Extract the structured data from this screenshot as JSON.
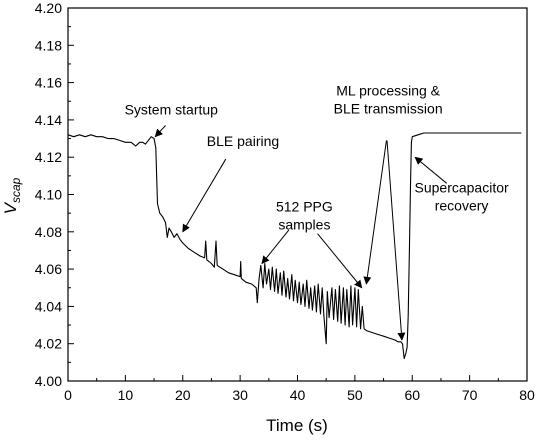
{
  "chart_data": {
    "type": "line",
    "title": "",
    "xlabel": "Time (s)",
    "ylabel_main": "V",
    "ylabel_sub": "scap",
    "xlim": [
      0,
      80
    ],
    "ylim": [
      4.0,
      4.2
    ],
    "xticks": [
      0,
      10,
      20,
      30,
      40,
      50,
      60,
      70,
      80
    ],
    "yticks": [
      4.0,
      4.02,
      4.04,
      4.06,
      4.08,
      4.1,
      4.12,
      4.14,
      4.16,
      4.18,
      4.2
    ],
    "ytick_labels": [
      "4.00",
      "4.02",
      "4.04",
      "4.06",
      "4.08",
      "4.10",
      "4.12",
      "4.14",
      "4.16",
      "4.18",
      "4.20"
    ],
    "grid": false,
    "legend": "none",
    "series": [
      {
        "color": "#000000",
        "points": [
          [
            0,
            4.132
          ],
          [
            1,
            4.131
          ],
          [
            2,
            4.132
          ],
          [
            3,
            4.131
          ],
          [
            4,
            4.132
          ],
          [
            5,
            4.131
          ],
          [
            6,
            4.131
          ],
          [
            7,
            4.13
          ],
          [
            8,
            4.13
          ],
          [
            9,
            4.129
          ],
          [
            10,
            4.128
          ],
          [
            11,
            4.128
          ],
          [
            11.8,
            4.126
          ],
          [
            12.5,
            4.128
          ],
          [
            13,
            4.128
          ],
          [
            13.5,
            4.127
          ],
          [
            14,
            4.129
          ],
          [
            14.5,
            4.131
          ],
          [
            15,
            4.13
          ],
          [
            15.3,
            4.125
          ],
          [
            15.6,
            4.095
          ],
          [
            16,
            4.09
          ],
          [
            16.5,
            4.088
          ],
          [
            17,
            4.085
          ],
          [
            17.3,
            4.077
          ],
          [
            17.6,
            4.082
          ],
          [
            18,
            4.08
          ],
          [
            18.5,
            4.077
          ],
          [
            19,
            4.079
          ],
          [
            19.5,
            4.076
          ],
          [
            20,
            4.074
          ],
          [
            21,
            4.071
          ],
          [
            22,
            4.069
          ],
          [
            23,
            4.067
          ],
          [
            23.8,
            4.066
          ],
          [
            24,
            4.075
          ],
          [
            24.2,
            4.065
          ],
          [
            25,
            4.063
          ],
          [
            25.5,
            4.061
          ],
          [
            25.8,
            4.075
          ],
          [
            26,
            4.062
          ],
          [
            27,
            4.06
          ],
          [
            28,
            4.058
          ],
          [
            29,
            4.057
          ],
          [
            30,
            4.056
          ],
          [
            30.1,
            4.064
          ],
          [
            30.2,
            4.055
          ],
          [
            31,
            4.053
          ],
          [
            32,
            4.052
          ],
          [
            32.8,
            4.05
          ],
          [
            33,
            4.042
          ],
          [
            33.3,
            4.055
          ],
          [
            33.6,
            4.062
          ],
          [
            34,
            4.05
          ],
          [
            34.3,
            4.063
          ],
          [
            34.6,
            4.052
          ],
          [
            35,
            4.06
          ],
          [
            35.3,
            4.049
          ],
          [
            35.6,
            4.061
          ],
          [
            36,
            4.048
          ],
          [
            36.3,
            4.06
          ],
          [
            36.6,
            4.047
          ],
          [
            37,
            4.058
          ],
          [
            37.3,
            4.046
          ],
          [
            37.6,
            4.059
          ],
          [
            38,
            4.045
          ],
          [
            38.3,
            4.055
          ],
          [
            38.6,
            4.044
          ],
          [
            39,
            4.057
          ],
          [
            39.3,
            4.043
          ],
          [
            39.6,
            4.054
          ],
          [
            40,
            4.042
          ],
          [
            40.3,
            4.053
          ],
          [
            40.6,
            4.041
          ],
          [
            41,
            4.052
          ],
          [
            41.3,
            4.04
          ],
          [
            41.6,
            4.054
          ],
          [
            42,
            4.039
          ],
          [
            42.3,
            4.05
          ],
          [
            42.6,
            4.038
          ],
          [
            43,
            4.051
          ],
          [
            43.3,
            4.037
          ],
          [
            43.6,
            4.052
          ],
          [
            44,
            4.036
          ],
          [
            44.3,
            4.05
          ],
          [
            44.6,
            4.035
          ],
          [
            45,
            4.02
          ],
          [
            45.2,
            4.048
          ],
          [
            45.5,
            4.034
          ],
          [
            46,
            4.05
          ],
          [
            46.3,
            4.033
          ],
          [
            46.6,
            4.049
          ],
          [
            47,
            4.032
          ],
          [
            47.3,
            4.051
          ],
          [
            47.6,
            4.031
          ],
          [
            48,
            4.05
          ],
          [
            48.3,
            4.03
          ],
          [
            48.6,
            4.049
          ],
          [
            49,
            4.029
          ],
          [
            49.3,
            4.051
          ],
          [
            49.6,
            4.03
          ],
          [
            50,
            4.05
          ],
          [
            50.3,
            4.029
          ],
          [
            50.6,
            4.049
          ],
          [
            51,
            4.028
          ],
          [
            51.3,
            4.04
          ],
          [
            51.6,
            4.028
          ],
          [
            52,
            4.027
          ],
          [
            53,
            4.026
          ],
          [
            54,
            4.025
          ],
          [
            55,
            4.024
          ],
          [
            56,
            4.023
          ],
          [
            57,
            4.022
          ],
          [
            57.5,
            4.021
          ],
          [
            58,
            4.021
          ],
          [
            58.3,
            4.02
          ],
          [
            58.6,
            4.012
          ],
          [
            58.9,
            4.015
          ],
          [
            59.1,
            4.018
          ],
          [
            59.3,
            4.035
          ],
          [
            59.5,
            4.07
          ],
          [
            59.7,
            4.105
          ],
          [
            59.85,
            4.128
          ],
          [
            60,
            4.131
          ],
          [
            61,
            4.132
          ],
          [
            62,
            4.133
          ],
          [
            63,
            4.133
          ],
          [
            65,
            4.133
          ],
          [
            67,
            4.133
          ],
          [
            70,
            4.133
          ],
          [
            73,
            4.133
          ],
          [
            76,
            4.133
          ],
          [
            79,
            4.133
          ]
        ]
      }
    ],
    "annotations": [
      {
        "lines": [
          "System startup"
        ],
        "text_x": 18,
        "text_y": 4.143,
        "arrow_from": [
          17.0,
          4.137
        ],
        "arrow_to": [
          15.2,
          4.131
        ]
      },
      {
        "lines": [
          "BLE pairing"
        ],
        "text_x": 30.5,
        "text_y": 4.126,
        "arrow_from": [
          27.5,
          4.119
        ],
        "arrow_to": [
          20.0,
          4.08
        ]
      },
      {
        "lines": [
          "512 PPG",
          "samples"
        ],
        "text_x": 41.2,
        "text_y": 4.091,
        "arrow_from": [
          38.5,
          4.081
        ],
        "arrow_to": [
          33.8,
          4.063
        ]
      },
      {
        "lines": [],
        "text_x": 0,
        "text_y": 0,
        "arrow_from": [
          43.5,
          4.079
        ],
        "arrow_to": [
          51.2,
          4.05
        ]
      },
      {
        "lines": [
          "ML processing &",
          "BLE transmission"
        ],
        "text_x": 55.8,
        "text_y": 4.153,
        "arrow_from": [
          55.5,
          4.129
        ],
        "arrow_to": [
          52.0,
          4.052
        ]
      },
      {
        "lines": [],
        "text_x": 0,
        "text_y": 0,
        "arrow_from": [
          55.6,
          4.129
        ],
        "arrow_to": [
          58.2,
          4.022
        ]
      },
      {
        "lines": [
          "Supercapacitor",
          "recovery"
        ],
        "text_x": 68.6,
        "text_y": 4.101,
        "arrow_from": [
          66.0,
          4.106
        ],
        "arrow_to": [
          60.5,
          4.12
        ]
      }
    ]
  }
}
